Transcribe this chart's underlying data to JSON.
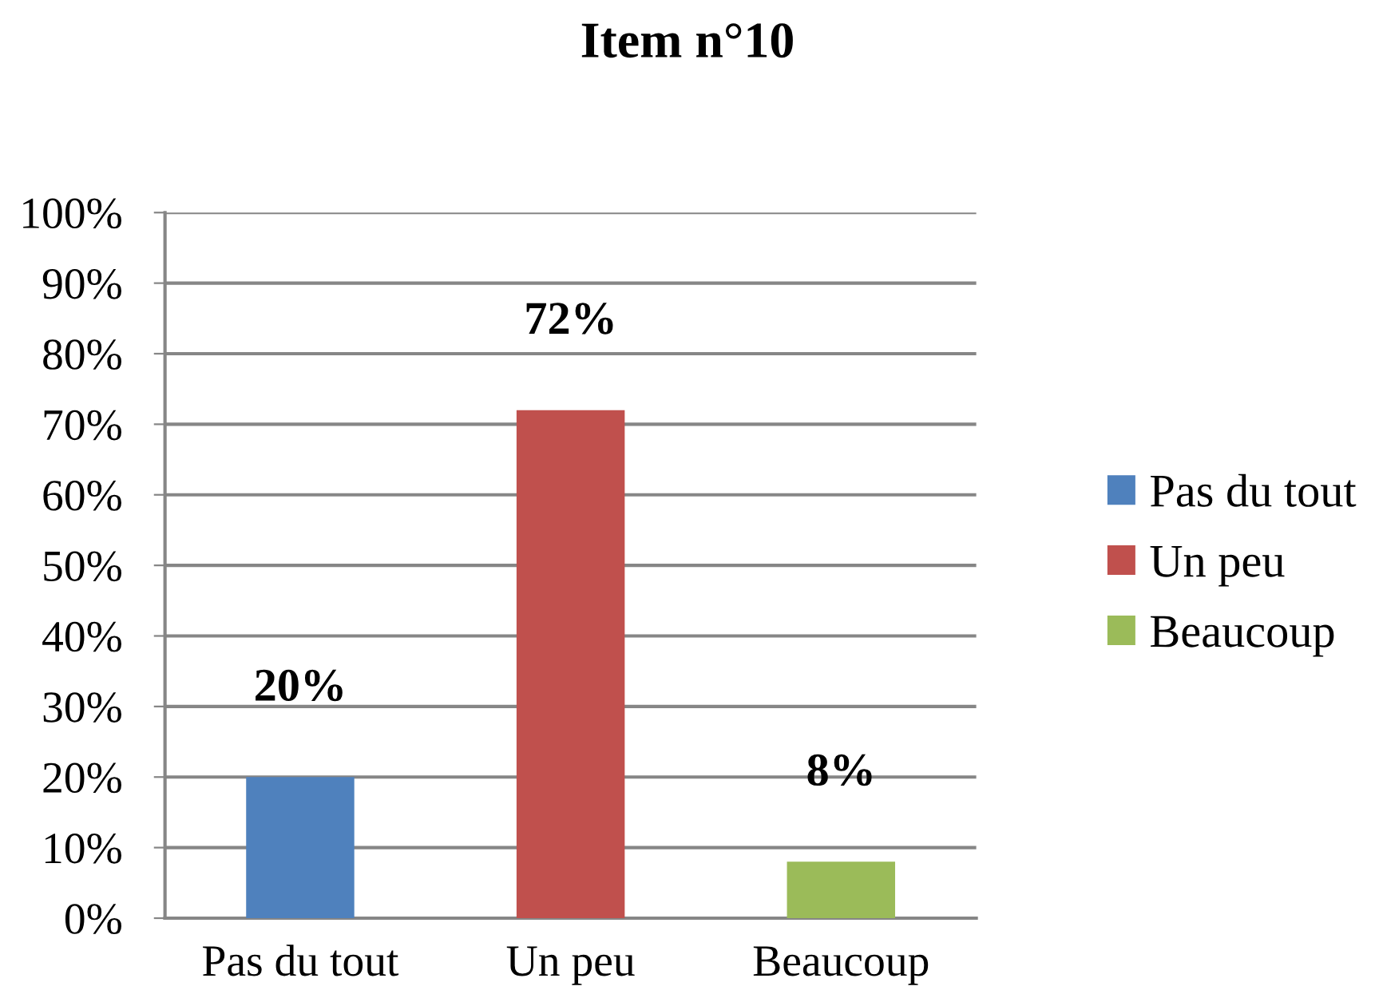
{
  "chart_data": {
    "type": "bar",
    "title": "Item n°10",
    "categories": [
      "Pas du tout",
      "Un peu",
      "Beaucoup"
    ],
    "series": [
      {
        "name": "Pas du tout",
        "color": "#4f81bd",
        "values": [
          20,
          null,
          null
        ],
        "value_labels": [
          "20%",
          null,
          null
        ]
      },
      {
        "name": "Un peu",
        "color": "#c0504d",
        "values": [
          null,
          72,
          null
        ],
        "value_labels": [
          null,
          "72%",
          null
        ]
      },
      {
        "name": "Beaucoup",
        "color": "#9bbb59",
        "values": [
          null,
          null,
          8
        ],
        "value_labels": [
          null,
          null,
          "8%"
        ]
      }
    ],
    "ylim": [
      0,
      100
    ],
    "yticks": [
      {
        "value": 0,
        "label": "0%"
      },
      {
        "value": 10,
        "label": "10%"
      },
      {
        "value": 20,
        "label": "20%"
      },
      {
        "value": 30,
        "label": "30%"
      },
      {
        "value": 40,
        "label": "40%"
      },
      {
        "value": 50,
        "label": "50%"
      },
      {
        "value": 60,
        "label": "60%"
      },
      {
        "value": 70,
        "label": "70%"
      },
      {
        "value": 80,
        "label": "80%"
      },
      {
        "value": 90,
        "label": "90%"
      },
      {
        "value": 100,
        "label": "100%"
      }
    ],
    "grid": "y",
    "legend": "right"
  }
}
